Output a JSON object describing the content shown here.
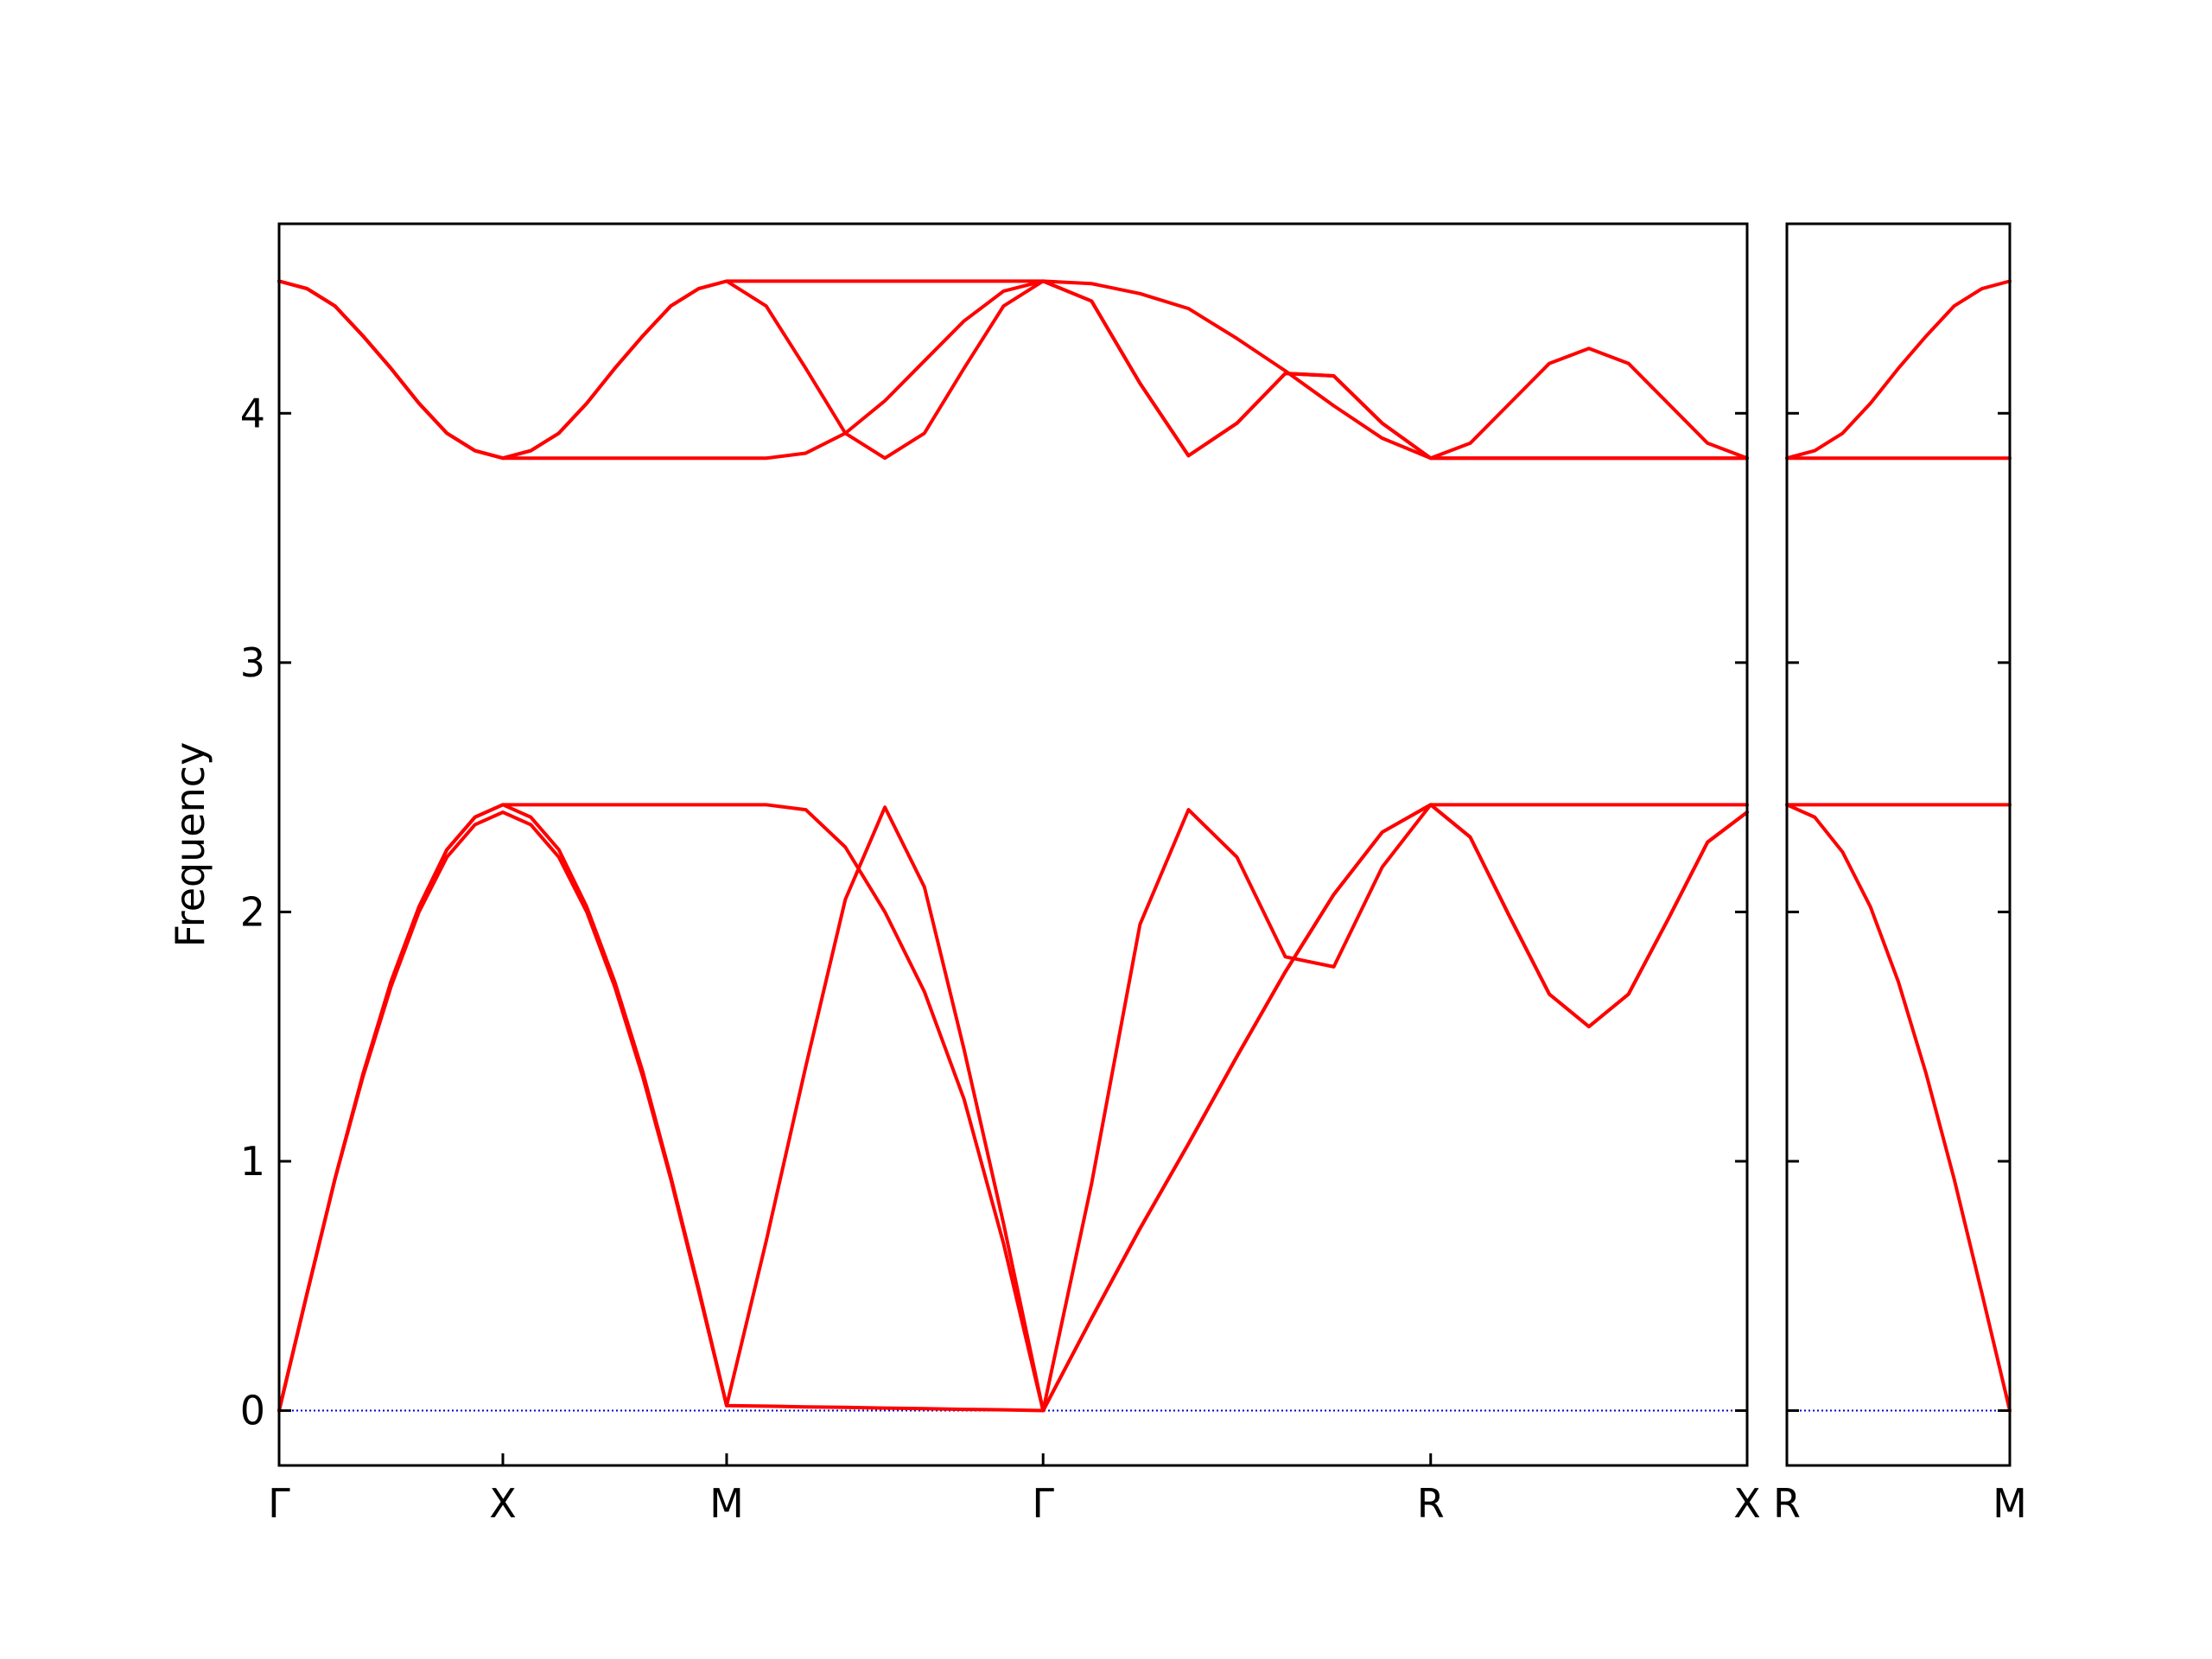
{
  "chart_data": [
    {
      "type": "line",
      "ylabel": "Frequency",
      "x": [
        0,
        0.0625,
        0.125,
        0.1875,
        0.25,
        0.3125,
        0.375,
        0.4375,
        0.5,
        0.5625,
        0.625,
        0.6875,
        0.75,
        0.8125,
        0.875,
        0.9375,
        1.0,
        1.0884,
        1.1768,
        1.2652,
        1.3536,
        1.4419,
        1.5303,
        1.6187,
        1.7071,
        1.8154,
        1.9236,
        2.0319,
        2.1401,
        2.2484,
        2.3566,
        2.4649,
        2.5731,
        2.6615,
        2.7499,
        2.8383,
        2.9267,
        3.015,
        3.1034,
        3.1918,
        3.2802
      ],
      "xlim": [
        0,
        3.2802
      ],
      "xticks": [
        {
          "value": 0,
          "label": "Γ"
        },
        {
          "value": 0.5,
          "label": "X"
        },
        {
          "value": 1.0,
          "label": "M"
        },
        {
          "value": 1.7071,
          "label": "Γ"
        },
        {
          "value": 2.5731,
          "label": "R"
        },
        {
          "value": 3.2802,
          "label": "X"
        }
      ],
      "ylim": [
        -0.22,
        4.76
      ],
      "yticks": [
        0,
        1,
        2,
        3,
        4
      ],
      "ytick_labels": true,
      "zero_line_color": "#0000cc",
      "series": [
        {
          "color": "#ff0000",
          "values": [
            0,
            0.47,
            0.93,
            1.34,
            1.7,
            2.0,
            2.22,
            2.35,
            2.4,
            2.35,
            2.22,
            2.0,
            1.7,
            1.34,
            0.93,
            0.48,
            0.02,
            0.018,
            0.015,
            0.013,
            0.01,
            0.008,
            0.005,
            0.003,
            0,
            0.37,
            0.73,
            1.07,
            1.42,
            1.76,
            2.07,
            2.32,
            2.43,
            2.3,
            1.98,
            1.67,
            1.54,
            1.67,
            1.97,
            2.28,
            2.4
          ]
        },
        {
          "color": "#ff0000",
          "values": [
            0,
            0.47,
            0.93,
            1.35,
            1.72,
            2.02,
            2.25,
            2.38,
            2.43,
            2.38,
            2.25,
            2.02,
            1.72,
            1.36,
            0.94,
            0.49,
            0.02,
            0.68,
            1.38,
            2.05,
            2.42,
            2.1,
            1.45,
            0.75,
            0,
            0.37,
            0.73,
            1.07,
            1.42,
            1.76,
            2.07,
            2.32,
            2.43,
            2.3,
            1.98,
            1.67,
            1.54,
            1.67,
            1.97,
            2.28,
            2.4
          ]
        },
        {
          "color": "#ff0000",
          "values": [
            0,
            0.47,
            0.93,
            1.35,
            1.72,
            2.02,
            2.25,
            2.38,
            2.43,
            2.43,
            2.43,
            2.43,
            2.43,
            2.43,
            2.43,
            2.43,
            2.43,
            2.43,
            2.41,
            2.26,
            2.0,
            1.68,
            1.25,
            0.67,
            0,
            0.91,
            1.95,
            2.41,
            2.22,
            1.82,
            1.78,
            2.18,
            2.43,
            2.43,
            2.43,
            2.43,
            2.43,
            2.43,
            2.43,
            2.43,
            2.43
          ]
        },
        {
          "color": "#ff0000",
          "values": [
            4.53,
            4.5,
            4.43,
            4.31,
            4.18,
            4.04,
            3.92,
            3.85,
            3.82,
            3.85,
            3.92,
            4.04,
            4.18,
            4.31,
            4.43,
            4.5,
            4.53,
            4.53,
            4.53,
            4.53,
            4.53,
            4.53,
            4.53,
            4.53,
            4.53,
            4.52,
            4.48,
            4.42,
            4.3,
            4.17,
            4.03,
            3.9,
            3.82,
            3.82,
            3.82,
            3.82,
            3.82,
            3.82,
            3.82,
            3.82,
            3.82
          ]
        },
        {
          "color": "#ff0000",
          "values": [
            4.53,
            4.5,
            4.43,
            4.31,
            4.18,
            4.04,
            3.92,
            3.85,
            3.82,
            3.85,
            3.92,
            4.04,
            4.18,
            4.31,
            4.43,
            4.5,
            4.53,
            4.43,
            4.18,
            3.92,
            3.82,
            3.92,
            4.18,
            4.43,
            4.53,
            4.45,
            4.12,
            3.83,
            3.96,
            4.16,
            4.15,
            3.96,
            3.82,
            3.88,
            4.04,
            4.2,
            4.26,
            4.2,
            4.04,
            3.88,
            3.82
          ]
        },
        {
          "color": "#ff0000",
          "values": [
            4.53,
            4.5,
            4.43,
            4.31,
            4.18,
            4.04,
            3.92,
            3.85,
            3.82,
            3.82,
            3.82,
            3.82,
            3.82,
            3.82,
            3.82,
            3.82,
            3.82,
            3.82,
            3.84,
            3.92,
            4.05,
            4.21,
            4.37,
            4.49,
            4.53,
            4.45,
            4.12,
            3.83,
            3.96,
            4.16,
            4.15,
            3.96,
            3.82,
            3.82,
            3.82,
            3.82,
            3.82,
            3.82,
            3.82,
            3.82,
            3.82
          ]
        }
      ]
    },
    {
      "type": "line",
      "x": [
        0,
        0.0625,
        0.125,
        0.1875,
        0.25,
        0.3125,
        0.375,
        0.4375,
        0.5
      ],
      "xlim": [
        0,
        0.5
      ],
      "xticks": [
        {
          "value": 0,
          "label": "R"
        },
        {
          "value": 0.5,
          "label": "M"
        }
      ],
      "ylim": [
        -0.22,
        4.76
      ],
      "yticks": [
        0,
        1,
        2,
        3,
        4
      ],
      "ytick_labels": false,
      "zero_line_color": "#0000cc",
      "series": [
        {
          "color": "#ff0000",
          "values": [
            2.43,
            2.38,
            2.24,
            2.02,
            1.72,
            1.35,
            0.93,
            0.47,
            0
          ]
        },
        {
          "color": "#ff0000",
          "values": [
            2.43,
            2.43,
            2.43,
            2.43,
            2.43,
            2.43,
            2.43,
            2.43,
            2.43
          ]
        },
        {
          "color": "#ff0000",
          "values": [
            3.82,
            3.85,
            3.92,
            4.04,
            4.18,
            4.31,
            4.43,
            4.5,
            4.53
          ]
        },
        {
          "color": "#ff0000",
          "values": [
            3.82,
            3.82,
            3.82,
            3.82,
            3.82,
            3.82,
            3.82,
            3.82,
            3.82
          ]
        }
      ]
    }
  ]
}
